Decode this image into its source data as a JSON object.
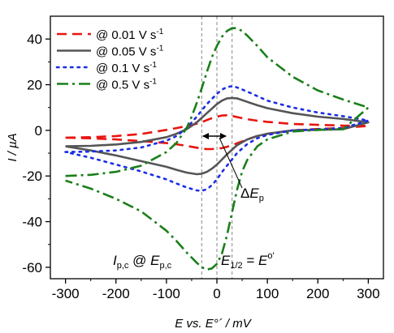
{
  "chart_data": {
    "type": "line",
    "xlabel": {
      "main": "E vs. E°´ / mV"
    },
    "ylabel": "I / µA",
    "xlim": [
      -330,
      330
    ],
    "ylim": [
      -65,
      50
    ],
    "xticks": [
      -300,
      -200,
      -100,
      0,
      100,
      200,
      300
    ],
    "yticks": [
      -60,
      -40,
      -20,
      0,
      20,
      40
    ],
    "grid": false,
    "legend": {
      "position": "top-left",
      "entries": [
        {
          "text": "@ 0.01 V s",
          "sup": "-1"
        },
        {
          "text": "@ 0.05 V s",
          "sup": "-1"
        },
        {
          "text": "@ 0.1 V s",
          "sup": "-1"
        },
        {
          "text": "@ 0.5 V s",
          "sup": "-1"
        }
      ]
    },
    "series": [
      {
        "name": "@ 0.01 V s-1",
        "color": "#e8140f",
        "style": "dash",
        "x": [
          -300,
          -250,
          -200,
          -150,
          -100,
          -80,
          -60,
          -40,
          -30,
          -20,
          -10,
          0,
          10,
          20,
          30,
          40,
          60,
          80,
          100,
          150,
          200,
          250,
          300,
          250,
          200,
          150,
          100,
          80,
          60,
          40,
          30,
          20,
          10,
          0,
          -10,
          -20,
          -30,
          -40,
          -60,
          -80,
          -100,
          -150,
          -200,
          -250,
          -300
        ],
        "y": [
          -3.2,
          -3.0,
          -2.5,
          -1.6,
          0.2,
          1.0,
          1.9,
          2.9,
          3.6,
          4.5,
          5.3,
          6.0,
          6.5,
          6.6,
          6.3,
          5.8,
          4.9,
          4.2,
          3.7,
          2.8,
          2.4,
          2.1,
          1.9,
          1.1,
          0.6,
          0.0,
          -1.5,
          -2.5,
          -4.0,
          -5.7,
          -6.5,
          -7.2,
          -7.8,
          -8.0,
          -8.2,
          -8.2,
          -8.0,
          -7.6,
          -6.8,
          -6.1,
          -5.6,
          -4.7,
          -4.0,
          -3.5,
          -3.2
        ]
      },
      {
        "name": "@ 0.05 V s-1",
        "color": "#555555",
        "style": "solid",
        "x": [
          -300,
          -250,
          -200,
          -150,
          -100,
          -80,
          -60,
          -40,
          -20,
          0,
          10,
          20,
          30,
          40,
          60,
          80,
          100,
          150,
          200,
          250,
          300,
          250,
          200,
          150,
          100,
          80,
          60,
          40,
          20,
          10,
          0,
          -10,
          -20,
          -30,
          -40,
          -60,
          -80,
          -100,
          -150,
          -200,
          -250,
          -300
        ],
        "y": [
          -7.0,
          -6.8,
          -6.2,
          -5.1,
          -3.0,
          -1.5,
          0.5,
          3.5,
          7.5,
          11.5,
          13.0,
          14.0,
          14.2,
          14.0,
          12.5,
          11.0,
          9.7,
          7.5,
          6.0,
          5.0,
          3.5,
          0.5,
          0.2,
          0.0,
          -1.5,
          -2.5,
          -4.0,
          -6.5,
          -10.5,
          -12.8,
          -15.0,
          -16.8,
          -18.2,
          -19.0,
          -19.2,
          -18.5,
          -17.3,
          -16.0,
          -13.5,
          -11.0,
          -8.8,
          -7.0
        ]
      },
      {
        "name": "@ 0.1 V s-1",
        "color": "#1a2ee6",
        "style": "dot",
        "x": [
          -300,
          -250,
          -200,
          -150,
          -100,
          -80,
          -60,
          -40,
          -20,
          0,
          10,
          20,
          30,
          40,
          60,
          80,
          100,
          150,
          200,
          250,
          300,
          250,
          200,
          150,
          100,
          80,
          60,
          40,
          20,
          10,
          0,
          -10,
          -20,
          -30,
          -40,
          -60,
          -80,
          -100,
          -150,
          -200,
          -250,
          -300
        ],
        "y": [
          -9.5,
          -9.3,
          -8.8,
          -7.5,
          -4.5,
          -2.5,
          1.0,
          6.0,
          11.5,
          16.0,
          17.8,
          19.0,
          19.3,
          18.8,
          17.0,
          15.0,
          13.0,
          10.0,
          7.8,
          6.2,
          4.3,
          1.0,
          0.5,
          0.0,
          -2.0,
          -3.5,
          -6.0,
          -10.0,
          -15.5,
          -18.3,
          -21.5,
          -24.0,
          -25.8,
          -26.5,
          -26.3,
          -25.0,
          -23.3,
          -21.5,
          -18.0,
          -15.0,
          -12.0,
          -9.5
        ]
      },
      {
        "name": "@ 0.5 V s-1",
        "color": "#1a7f1a",
        "style": "dashdot",
        "x": [
          -300,
          -250,
          -200,
          -150,
          -100,
          -80,
          -60,
          -50,
          -40,
          -30,
          -20,
          -10,
          0,
          10,
          20,
          30,
          40,
          50,
          60,
          80,
          100,
          150,
          200,
          250,
          300,
          250,
          200,
          150,
          100,
          80,
          60,
          50,
          40,
          30,
          20,
          10,
          0,
          -10,
          -20,
          -30,
          -40,
          -60,
          -80,
          -100,
          -150,
          -200,
          -250,
          -300
        ],
        "y": [
          -20.0,
          -19.5,
          -18.2,
          -15.5,
          -9.5,
          -5.5,
          1.0,
          6.0,
          12.0,
          18.5,
          25.5,
          32.0,
          37.0,
          41.0,
          43.5,
          44.8,
          44.7,
          43.5,
          41.5,
          37.0,
          32.0,
          23.5,
          17.5,
          13.5,
          10.0,
          0.5,
          0.2,
          -0.5,
          -4.0,
          -7.0,
          -13.0,
          -18.0,
          -26.0,
          -36.0,
          -46.0,
          -54.0,
          -58.5,
          -60.5,
          -61.0,
          -60.0,
          -58.0,
          -53.5,
          -48.5,
          -44.0,
          -35.5,
          -30.0,
          -25.5,
          -22.0
        ]
      }
    ],
    "reference_lines_x": [
      -30,
      0,
      30
    ],
    "annotations": [
      {
        "id": "dEp",
        "prefix": "Δ",
        "main": "E",
        "sub": "p"
      },
      {
        "id": "ipc",
        "main1": "I",
        "sub1": "p,c",
        "mid": " @ ",
        "main2": "E",
        "sub2": "p,c"
      },
      {
        "id": "e12",
        "main1": "E",
        "sub1": "1/2",
        "mid": " = ",
        "main2": "E",
        "sup2": "o'"
      }
    ]
  }
}
